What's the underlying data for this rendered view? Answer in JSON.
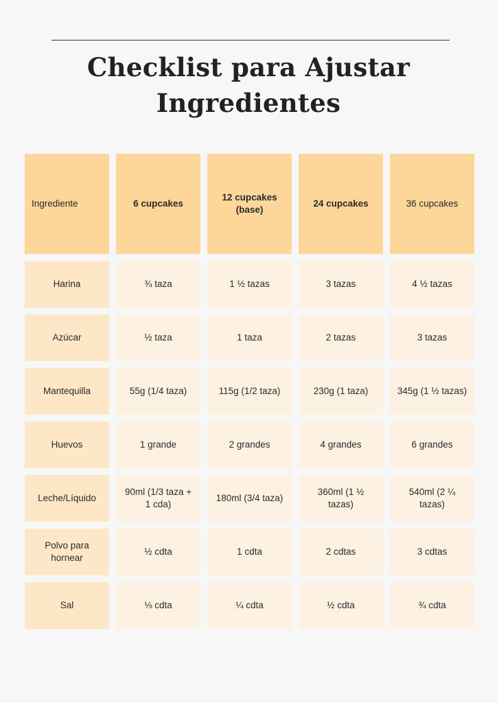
{
  "title": {
    "line1": "Checklist para Ajustar",
    "line2": "Ingredientes"
  },
  "table": {
    "headers": [
      "Ingrediente",
      "6 cupcakes",
      "12 cupcakes (base)",
      "24 cupcakes",
      "36 cupcakes"
    ],
    "rows": [
      [
        "Harina",
        "¾ taza",
        "1 ½ tazas",
        "3 tazas",
        "4 ½ tazas"
      ],
      [
        "Azúcar",
        "½ taza",
        "1 taza",
        "2 tazas",
        "3 tazas"
      ],
      [
        "Mantequilla",
        "55g (1/4 taza)",
        "115g (1/2 taza)",
        "230g (1 taza)",
        "345g (1 ½ tazas)"
      ],
      [
        "Huevos",
        "1 grande",
        "2 grandes",
        "4 grandes",
        "6 grandes"
      ],
      [
        "Leche/Líquido",
        "90ml (1/3 taza + 1 cda)",
        "180ml (3/4 taza)",
        "360ml (1 ½ tazas)",
        "540ml (2 ¼ tazas)"
      ],
      [
        "Polvo para hornear",
        "½ cdta",
        "1 cdta",
        "2 cdtas",
        "3 cdtas"
      ],
      [
        "Sal",
        "⅛ cdta",
        "¼ cdta",
        "½ cdta",
        "¾ cdta"
      ]
    ]
  }
}
